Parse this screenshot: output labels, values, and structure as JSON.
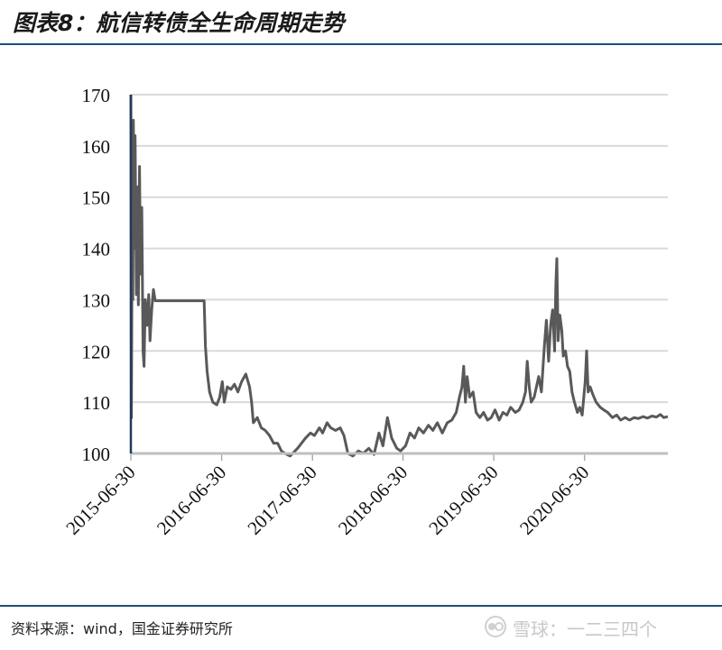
{
  "header": {
    "title": "图表8：航信转债全生命周期走势"
  },
  "footer": {
    "source": "资料来源：wind，国金证券研究所",
    "watermark": "雪球：一二三四个"
  },
  "colors": {
    "line": "#595959",
    "grid": "#d9d9d9",
    "rule": "#1f4e79",
    "axis": "#1f3a5f"
  },
  "chart_data": {
    "type": "line",
    "title": "",
    "xlabel": "",
    "ylabel": "",
    "ylim": [
      100,
      170
    ],
    "yticks": [
      100,
      110,
      120,
      130,
      140,
      150,
      160,
      170
    ],
    "xticks": [
      "2015-06-30",
      "2016-06-30",
      "2017-06-30",
      "2018-06-30",
      "2019-06-30",
      "2020-06-30"
    ],
    "xlim": [
      "2015-06-30",
      "2021-05-31"
    ],
    "grid": true,
    "series": [
      {
        "name": "",
        "points": [
          [
            "2015-06-30",
            170
          ],
          [
            "2015-07-02",
            107
          ],
          [
            "2015-07-06",
            158
          ],
          [
            "2015-07-08",
            130
          ],
          [
            "2015-07-10",
            165
          ],
          [
            "2015-07-14",
            140
          ],
          [
            "2015-07-17",
            162
          ],
          [
            "2015-07-22",
            131
          ],
          [
            "2015-07-26",
            152
          ],
          [
            "2015-07-30",
            129
          ],
          [
            "2015-08-04",
            156
          ],
          [
            "2015-08-08",
            135
          ],
          [
            "2015-08-13",
            148
          ],
          [
            "2015-08-18",
            120
          ],
          [
            "2015-08-22",
            117
          ],
          [
            "2015-08-27",
            130
          ],
          [
            "2015-09-03",
            125
          ],
          [
            "2015-09-10",
            131
          ],
          [
            "2015-09-15",
            122
          ],
          [
            "2015-09-22",
            128
          ],
          [
            "2015-09-29",
            132
          ],
          [
            "2015-10-06",
            129.8
          ],
          [
            "2016-01-15",
            129.8
          ],
          [
            "2016-04-15",
            129.8
          ],
          [
            "2016-04-20",
            129.8
          ],
          [
            "2016-04-25",
            121
          ],
          [
            "2016-05-02",
            116
          ],
          [
            "2016-05-12",
            112
          ],
          [
            "2016-05-25",
            110
          ],
          [
            "2016-06-10",
            109.5
          ],
          [
            "2016-06-22",
            111
          ],
          [
            "2016-07-02",
            114
          ],
          [
            "2016-07-10",
            110
          ],
          [
            "2016-07-22",
            113
          ],
          [
            "2016-08-06",
            112.5
          ],
          [
            "2016-08-20",
            113.5
          ],
          [
            "2016-09-03",
            112
          ],
          [
            "2016-09-18",
            114
          ],
          [
            "2016-10-05",
            115.5
          ],
          [
            "2016-10-20",
            113
          ],
          [
            "2016-10-28",
            110
          ],
          [
            "2016-11-04",
            106
          ],
          [
            "2016-11-20",
            107
          ],
          [
            "2016-12-06",
            105
          ],
          [
            "2016-12-22",
            104.5
          ],
          [
            "2017-01-08",
            103.5
          ],
          [
            "2017-01-25",
            102
          ],
          [
            "2017-02-10",
            102
          ],
          [
            "2017-02-25",
            100.5
          ],
          [
            "2017-03-12",
            100
          ],
          [
            "2017-04-01",
            99.5
          ],
          [
            "2017-05-01",
            101
          ],
          [
            "2017-06-02",
            103
          ],
          [
            "2017-06-22",
            104
          ],
          [
            "2017-07-08",
            103.5
          ],
          [
            "2017-07-28",
            105
          ],
          [
            "2017-08-10",
            104
          ],
          [
            "2017-08-28",
            106
          ],
          [
            "2017-09-12",
            105
          ],
          [
            "2017-10-01",
            104.5
          ],
          [
            "2017-10-20",
            105
          ],
          [
            "2017-11-04",
            103.5
          ],
          [
            "2017-11-20",
            100
          ],
          [
            "2017-12-10",
            99.5
          ],
          [
            "2018-01-01",
            100.5
          ],
          [
            "2018-01-20",
            100
          ],
          [
            "2018-02-12",
            101
          ],
          [
            "2018-03-05",
            99.8
          ],
          [
            "2018-03-25",
            104
          ],
          [
            "2018-04-10",
            101.5
          ],
          [
            "2018-04-28",
            107
          ],
          [
            "2018-05-15",
            103
          ],
          [
            "2018-06-05",
            101
          ],
          [
            "2018-06-20",
            100.5
          ],
          [
            "2018-07-10",
            101.5
          ],
          [
            "2018-07-28",
            104
          ],
          [
            "2018-08-15",
            103
          ],
          [
            "2018-09-01",
            105
          ],
          [
            "2018-09-20",
            104
          ],
          [
            "2018-10-10",
            105.5
          ],
          [
            "2018-10-28",
            104.5
          ],
          [
            "2018-11-15",
            106
          ],
          [
            "2018-12-05",
            104
          ],
          [
            "2018-12-25",
            106
          ],
          [
            "2019-01-12",
            106.5
          ],
          [
            "2019-01-30",
            108
          ],
          [
            "2019-02-12",
            111
          ],
          [
            "2019-02-22",
            113
          ],
          [
            "2019-03-01",
            117
          ],
          [
            "2019-03-08",
            110
          ],
          [
            "2019-03-15",
            115
          ],
          [
            "2019-03-25",
            111
          ],
          [
            "2019-04-08",
            112
          ],
          [
            "2019-04-20",
            108
          ],
          [
            "2019-05-05",
            107
          ],
          [
            "2019-05-20",
            108
          ],
          [
            "2019-06-05",
            106.5
          ],
          [
            "2019-06-20",
            107
          ],
          [
            "2019-07-05",
            108.5
          ],
          [
            "2019-07-22",
            106.5
          ],
          [
            "2019-08-06",
            108
          ],
          [
            "2019-08-22",
            107.5
          ],
          [
            "2019-09-06",
            109
          ],
          [
            "2019-09-25",
            108
          ],
          [
            "2019-10-10",
            108.5
          ],
          [
            "2019-10-25",
            110
          ],
          [
            "2019-11-05",
            112
          ],
          [
            "2019-11-12",
            118
          ],
          [
            "2019-11-20",
            113
          ],
          [
            "2019-11-28",
            110
          ],
          [
            "2019-12-10",
            111
          ],
          [
            "2019-12-28",
            115
          ],
          [
            "2020-01-08",
            112
          ],
          [
            "2020-01-20",
            121
          ],
          [
            "2020-01-28",
            126
          ],
          [
            "2020-02-06",
            118
          ],
          [
            "2020-02-14",
            125
          ],
          [
            "2020-02-22",
            128
          ],
          [
            "2020-03-01",
            120
          ],
          [
            "2020-03-06",
            133
          ],
          [
            "2020-03-10",
            138
          ],
          [
            "2020-03-15",
            122
          ],
          [
            "2020-03-22",
            127
          ],
          [
            "2020-03-30",
            124
          ],
          [
            "2020-04-05",
            119
          ],
          [
            "2020-04-14",
            120
          ],
          [
            "2020-04-22",
            117
          ],
          [
            "2020-05-01",
            116
          ],
          [
            "2020-05-10",
            112
          ],
          [
            "2020-05-20",
            110
          ],
          [
            "2020-06-01",
            108
          ],
          [
            "2020-06-10",
            109
          ],
          [
            "2020-06-20",
            107.5
          ],
          [
            "2020-07-02",
            114
          ],
          [
            "2020-07-08",
            120
          ],
          [
            "2020-07-14",
            112
          ],
          [
            "2020-07-22",
            113
          ],
          [
            "2020-08-02",
            111.5
          ],
          [
            "2020-08-15",
            110
          ],
          [
            "2020-09-01",
            109
          ],
          [
            "2020-09-15",
            108.5
          ],
          [
            "2020-10-01",
            108
          ],
          [
            "2020-10-20",
            107
          ],
          [
            "2020-11-06",
            107.5
          ],
          [
            "2020-11-22",
            106.5
          ],
          [
            "2020-12-10",
            107
          ],
          [
            "2020-12-28",
            106.5
          ],
          [
            "2021-01-15",
            107
          ],
          [
            "2021-02-01",
            106.8
          ],
          [
            "2021-02-20",
            107.2
          ],
          [
            "2021-03-10",
            106.9
          ],
          [
            "2021-03-28",
            107.3
          ],
          [
            "2021-04-15",
            107.1
          ],
          [
            "2021-05-01",
            107.6
          ],
          [
            "2021-05-15",
            107.0
          ],
          [
            "2021-05-31",
            107.2
          ]
        ]
      }
    ]
  }
}
